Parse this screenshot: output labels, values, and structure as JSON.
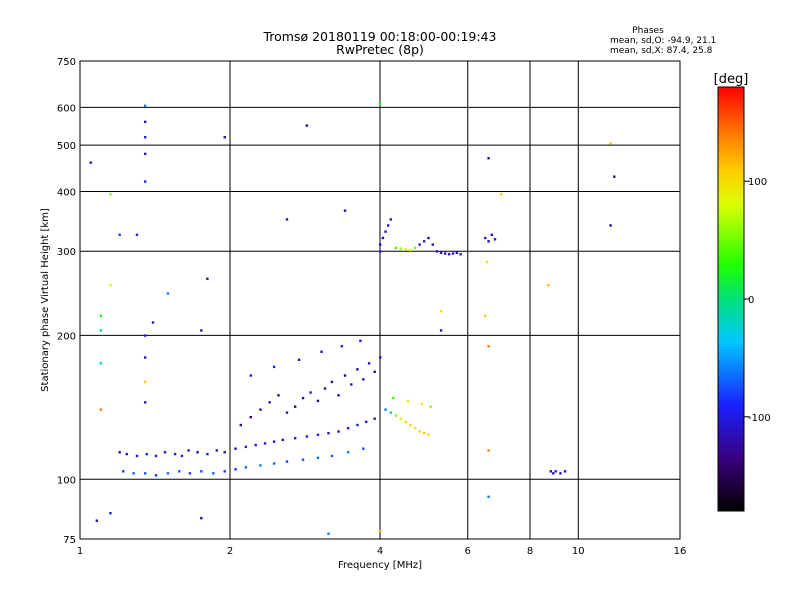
{
  "header": {
    "title_line1": "Tromsø 20180119 00:18:00-00:19:43",
    "title_line2": "RwPretec (8p)",
    "stats_heading": "Phases",
    "stats_o": "mean, sd,O: -94.9, 21.1",
    "stats_x": "mean, sd,X:  87.4, 25.8"
  },
  "chart_data": {
    "type": "scatter",
    "xlabel": "Frequency [MHz]",
    "ylabel": "Stationary phase Virtual Height [km]",
    "xscale": "log",
    "yscale": "log",
    "xlim": [
      1,
      16
    ],
    "ylim": [
      75,
      750
    ],
    "xticks": [
      1,
      2,
      4,
      6,
      8,
      10,
      16
    ],
    "xtick_labels": [
      "1",
      "2",
      "4",
      "6",
      "8",
      "10",
      "16"
    ],
    "yticks": [
      75,
      100,
      200,
      300,
      400,
      500,
      600,
      750
    ],
    "ytick_labels": [
      "75",
      "100",
      "200",
      "300",
      "400",
      "500",
      "600",
      "750"
    ],
    "grid": true,
    "colorbar": {
      "label": "[deg]",
      "range": [
        -180,
        180
      ],
      "ticks": [
        100,
        0,
        -100
      ],
      "tick_labels": [
        "100",
        "0",
        "-100"
      ]
    },
    "series": [
      {
        "points": [
          [
            1.2,
            114,
            -110
          ],
          [
            1.24,
            113,
            -120
          ],
          [
            1.3,
            112,
            -100
          ],
          [
            1.36,
            113,
            -90
          ],
          [
            1.42,
            112,
            -105
          ],
          [
            1.48,
            114,
            -115
          ],
          [
            1.55,
            113,
            -95
          ],
          [
            1.6,
            112,
            -100
          ],
          [
            1.65,
            115,
            -110
          ],
          [
            1.72,
            114,
            -120
          ],
          [
            1.8,
            113,
            -90
          ],
          [
            1.88,
            115,
            -100
          ],
          [
            1.95,
            114,
            -110
          ],
          [
            2.05,
            116,
            -120
          ],
          [
            2.15,
            117,
            -100
          ],
          [
            2.25,
            118,
            -95
          ],
          [
            2.35,
            119,
            -105
          ],
          [
            2.45,
            120,
            -110
          ],
          [
            2.55,
            121,
            -120
          ],
          [
            2.7,
            122,
            -100
          ],
          [
            2.85,
            123,
            -90
          ],
          [
            3.0,
            124,
            -100
          ],
          [
            3.15,
            125,
            -110
          ],
          [
            3.3,
            126,
            -120
          ],
          [
            3.45,
            128,
            -100
          ],
          [
            3.6,
            130,
            -95
          ],
          [
            3.75,
            132,
            -105
          ],
          [
            3.9,
            134,
            -110
          ],
          [
            1.22,
            104,
            -80
          ],
          [
            1.28,
            103,
            -70
          ],
          [
            1.35,
            103,
            -75
          ],
          [
            1.42,
            102,
            -85
          ],
          [
            1.5,
            103,
            -65
          ],
          [
            1.58,
            104,
            -70
          ],
          [
            1.66,
            103,
            -80
          ],
          [
            1.75,
            104,
            -75
          ],
          [
            1.85,
            103,
            -70
          ],
          [
            1.95,
            104,
            -80
          ],
          [
            2.05,
            105,
            -85
          ],
          [
            2.15,
            106,
            -70
          ],
          [
            2.3,
            107,
            -60
          ],
          [
            2.45,
            108,
            -70
          ],
          [
            2.6,
            109,
            -80
          ],
          [
            2.8,
            110,
            -75
          ],
          [
            3.0,
            111,
            -65
          ],
          [
            3.2,
            112,
            -70
          ],
          [
            3.45,
            114,
            -60
          ],
          [
            3.7,
            116,
            -75
          ],
          [
            2.1,
            130,
            -130
          ],
          [
            2.2,
            135,
            -140
          ],
          [
            2.3,
            140,
            -120
          ],
          [
            2.4,
            145,
            -110
          ],
          [
            2.5,
            150,
            -125
          ],
          [
            2.6,
            138,
            -115
          ],
          [
            2.7,
            142,
            -135
          ],
          [
            2.8,
            148,
            -120
          ],
          [
            2.9,
            152,
            -110
          ],
          [
            3.0,
            146,
            -130
          ],
          [
            3.1,
            155,
            -125
          ],
          [
            3.2,
            160,
            -115
          ],
          [
            3.3,
            150,
            -120
          ],
          [
            3.4,
            165,
            -130
          ],
          [
            3.5,
            158,
            -110
          ],
          [
            3.6,
            170,
            -125
          ],
          [
            3.7,
            162,
            -115
          ],
          [
            3.8,
            175,
            -120
          ],
          [
            3.9,
            168,
            -130
          ],
          [
            4.0,
            180,
            -110
          ],
          [
            2.2,
            165,
            -100
          ],
          [
            2.45,
            172,
            -90
          ],
          [
            2.75,
            178,
            -105
          ],
          [
            3.05,
            185,
            -110
          ],
          [
            3.35,
            190,
            -95
          ],
          [
            3.65,
            195,
            -100
          ],
          [
            4.1,
            140,
            -60
          ],
          [
            4.2,
            138,
            -20
          ],
          [
            4.3,
            136,
            60
          ],
          [
            4.4,
            134,
            80
          ],
          [
            4.5,
            132,
            100
          ],
          [
            4.6,
            130,
            110
          ],
          [
            4.7,
            128,
            90
          ],
          [
            4.8,
            126,
            100
          ],
          [
            4.9,
            125,
            110
          ],
          [
            5.0,
            124,
            95
          ],
          [
            4.25,
            148,
            40
          ],
          [
            4.55,
            146,
            70
          ],
          [
            4.85,
            144,
            90
          ],
          [
            5.05,
            142,
            60
          ],
          [
            4.0,
            310,
            -110
          ],
          [
            4.05,
            320,
            -120
          ],
          [
            4.1,
            330,
            -115
          ],
          [
            4.15,
            340,
            -105
          ],
          [
            4.2,
            350,
            -110
          ],
          [
            4.0,
            300,
            -100
          ],
          [
            4.3,
            305,
            40
          ],
          [
            4.4,
            304,
            60
          ],
          [
            4.5,
            303,
            80
          ],
          [
            4.6,
            302,
            70
          ],
          [
            4.7,
            305,
            50
          ],
          [
            4.8,
            310,
            -100
          ],
          [
            4.9,
            315,
            -110
          ],
          [
            5.0,
            320,
            -120
          ],
          [
            5.1,
            310,
            -115
          ],
          [
            5.2,
            300,
            -105
          ],
          [
            5.3,
            298,
            -110
          ],
          [
            5.4,
            297,
            -120
          ],
          [
            5.5,
            296,
            -115
          ],
          [
            5.6,
            297,
            -105
          ],
          [
            5.7,
            298,
            -110
          ],
          [
            5.8,
            296,
            -90
          ],
          [
            6.5,
            320,
            -110
          ],
          [
            6.6,
            315,
            -120
          ],
          [
            6.7,
            325,
            -115
          ],
          [
            6.8,
            318,
            -105
          ],
          [
            8.8,
            104,
            -120
          ],
          [
            8.9,
            103,
            -110
          ],
          [
            9.0,
            104,
            -100
          ],
          [
            9.2,
            103,
            -115
          ],
          [
            9.4,
            104,
            -105
          ],
          [
            1.05,
            460,
            -110
          ],
          [
            1.35,
            605,
            -60
          ],
          [
            1.35,
            560,
            -120
          ],
          [
            1.35,
            520,
            -100
          ],
          [
            1.35,
            480,
            -110
          ],
          [
            1.35,
            420,
            -90
          ],
          [
            1.95,
            520,
            -120
          ],
          [
            2.85,
            550,
            -130
          ],
          [
            4.0,
            610,
            20
          ],
          [
            6.6,
            470,
            -130
          ],
          [
            11.8,
            430,
            -120
          ],
          [
            11.6,
            505,
            110
          ],
          [
            11.6,
            340,
            -130
          ],
          [
            2.6,
            350,
            -110
          ],
          [
            3.4,
            365,
            -120
          ],
          [
            1.2,
            325,
            -80
          ],
          [
            1.3,
            325,
            -90
          ],
          [
            1.5,
            245,
            -60
          ],
          [
            1.4,
            213,
            -110
          ],
          [
            1.8,
            263,
            -120
          ],
          [
            1.1,
            220,
            20
          ],
          [
            1.1,
            205,
            -10
          ],
          [
            1.35,
            200,
            -100
          ],
          [
            1.35,
            180,
            -110
          ],
          [
            1.1,
            175,
            -20
          ],
          [
            1.35,
            160,
            110
          ],
          [
            1.35,
            145,
            -110
          ],
          [
            1.1,
            140,
            140
          ],
          [
            1.75,
            205,
            -110
          ],
          [
            1.75,
            83,
            -120
          ],
          [
            1.08,
            82,
            -120
          ],
          [
            1.15,
            85,
            -90
          ],
          [
            3.15,
            77,
            -60
          ],
          [
            4.0,
            78,
            120
          ],
          [
            6.6,
            92,
            -60
          ],
          [
            6.6,
            115,
            140
          ],
          [
            6.6,
            190,
            140
          ],
          [
            6.5,
            220,
            110
          ],
          [
            6.55,
            285,
            100
          ],
          [
            7.0,
            395,
            110
          ],
          [
            8.7,
            255,
            120
          ],
          [
            5.3,
            225,
            100
          ],
          [
            5.3,
            205,
            -110
          ],
          [
            1.15,
            255,
            80
          ],
          [
            1.15,
            395,
            60
          ]
        ]
      }
    ]
  }
}
